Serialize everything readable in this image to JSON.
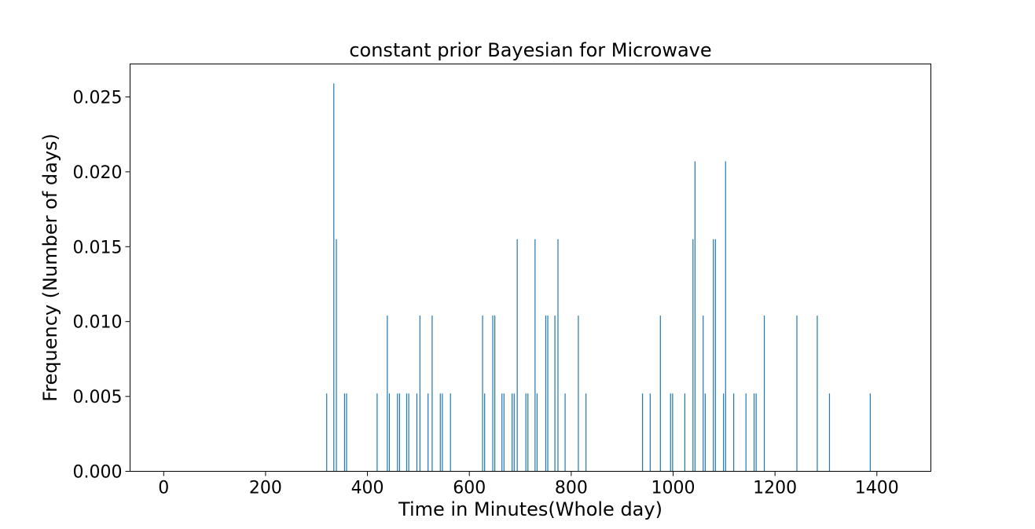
{
  "chart_data": {
    "type": "bar",
    "title": "constant prior Bayesian for Microwave",
    "xlabel": "Time in Minutes(Whole day)",
    "ylabel": "Frequency (Number of days)",
    "xlim": [
      -66,
      1506
    ],
    "ylim": [
      0,
      0.0272
    ],
    "xticks": [
      0,
      200,
      400,
      600,
      800,
      1000,
      1200,
      1400
    ],
    "xtick_labels": [
      "0",
      "200",
      "400",
      "600",
      "800",
      "1000",
      "1200",
      "1400"
    ],
    "yticks": [
      0,
      0.005,
      0.01,
      0.015,
      0.02,
      0.025
    ],
    "ytick_labels": [
      "0.000",
      "0.005",
      "0.010",
      "0.015",
      "0.020",
      "0.025"
    ],
    "grid": false,
    "bar_color": "#1f77b4",
    "x": [
      320,
      334,
      339,
      355,
      359,
      419,
      439,
      443,
      459,
      463,
      477,
      481,
      497,
      503,
      519,
      527,
      543,
      547,
      563,
      626,
      630,
      646,
      650,
      664,
      668,
      684,
      688,
      694,
      711,
      715,
      729,
      733,
      750,
      754,
      768,
      774,
      788,
      814,
      829,
      940,
      955,
      975,
      995,
      999,
      1023,
      1039,
      1043,
      1059,
      1063,
      1079,
      1083,
      1099,
      1103,
      1119,
      1143,
      1159,
      1163,
      1179,
      1243,
      1283,
      1307,
      1387
    ],
    "values": [
      0.0052,
      0.0259,
      0.0155,
      0.0052,
      0.0052,
      0.0052,
      0.0104,
      0.0052,
      0.0052,
      0.0052,
      0.0052,
      0.0052,
      0.0052,
      0.0104,
      0.0052,
      0.0104,
      0.0052,
      0.0052,
      0.0052,
      0.0104,
      0.0052,
      0.0104,
      0.0104,
      0.0052,
      0.0052,
      0.0052,
      0.0052,
      0.0155,
      0.0052,
      0.0052,
      0.0155,
      0.0052,
      0.0104,
      0.0104,
      0.0104,
      0.0155,
      0.0052,
      0.0104,
      0.0052,
      0.0052,
      0.0052,
      0.0104,
      0.0052,
      0.0052,
      0.0052,
      0.0155,
      0.0207,
      0.0104,
      0.0052,
      0.0155,
      0.0155,
      0.0052,
      0.0207,
      0.0052,
      0.0052,
      0.0052,
      0.0052,
      0.0104,
      0.0104,
      0.0104,
      0.0052,
      0.0052
    ]
  }
}
